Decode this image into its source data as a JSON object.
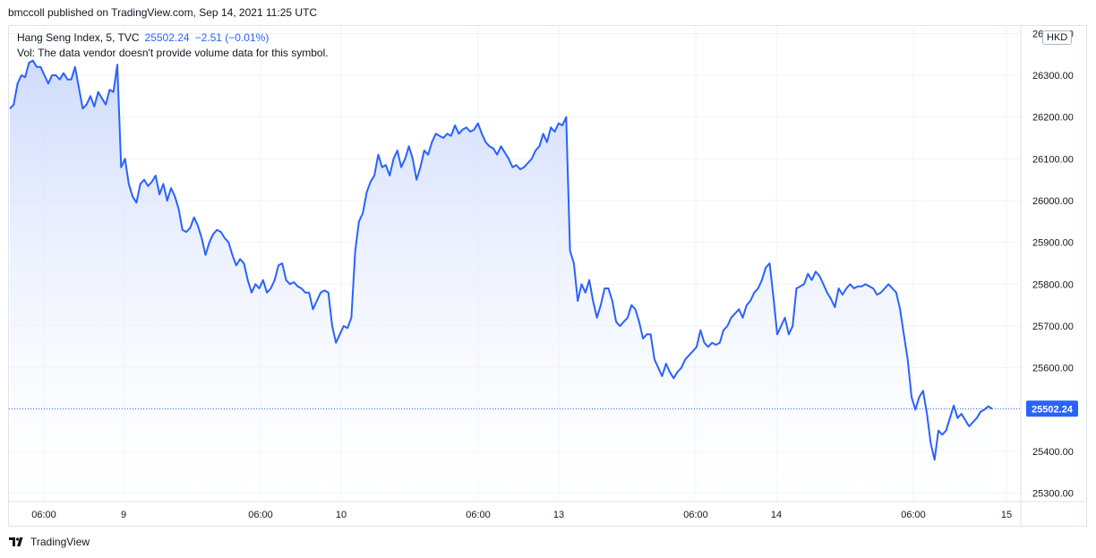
{
  "header": {
    "publish_line": "bmccoll published on TradingView.com, Sep 14, 2021 11:25 UTC"
  },
  "legend": {
    "symbol": "Hang Seng Index, 5, TVC",
    "last": "25502.24",
    "change": "−2.51 (−0.01%)",
    "volume_note": "Vol: The data vendor doesn't provide volume data for this symbol."
  },
  "currency": "HKD",
  "footer": {
    "brand": "TradingView"
  },
  "colors": {
    "line": "#2962ff",
    "fill_top": "#c9d7fb",
    "fill_bottom": "#ffffff",
    "grid": "#f0f3fa",
    "price_label_bg": "#2962ff",
    "axis_text": "#131722"
  },
  "chart_data": {
    "type": "area",
    "title": "",
    "xlabel": "",
    "ylabel": "",
    "x_tick_labels": [
      "06:00",
      "9",
      "06:00",
      "10",
      "06:00",
      "13",
      "06:00",
      "14",
      "06:00",
      "15"
    ],
    "y_tick_labels": [
      "25300.00",
      "25400.00",
      "25500.00",
      "25600.00",
      "25700.00",
      "25800.00",
      "25900.00",
      "26000.00",
      "26100.00",
      "26200.00",
      "26300.00",
      "26400.00"
    ],
    "ylim": [
      25280,
      26420
    ],
    "grid": true,
    "last_price_label": "25502.24",
    "series": [
      {
        "values": [
          26220,
          26230,
          26280,
          26300,
          26295,
          26330,
          26335,
          26320,
          26320,
          26300,
          26280,
          26300,
          26300,
          26290,
          26305,
          26290,
          26290,
          26320,
          26270,
          26220,
          26230,
          26250,
          26225,
          26260,
          26245,
          26230,
          26265,
          26260,
          26325,
          26080,
          26100,
          26040,
          26010,
          25995,
          26040,
          26050,
          26035,
          26045,
          26060,
          26015,
          26040,
          26000,
          26030,
          26010,
          25980,
          25930,
          25925,
          25935,
          25960,
          25940,
          25910,
          25870,
          25900,
          25920,
          25930,
          25925,
          25910,
          25900,
          25870,
          25845,
          25860,
          25850,
          25810,
          25780,
          25800,
          25790,
          25810,
          25780,
          25790,
          25810,
          25845,
          25850,
          25810,
          25800,
          25805,
          25795,
          25790,
          25780,
          25780,
          25740,
          25760,
          25780,
          25785,
          25780,
          25700,
          25660,
          25680,
          25700,
          25695,
          25720,
          25880,
          25950,
          25970,
          26020,
          26045,
          26060,
          26110,
          26080,
          26085,
          26060,
          26100,
          26120,
          26080,
          26100,
          26130,
          26100,
          26050,
          26080,
          26120,
          26110,
          26140,
          26160,
          26155,
          26150,
          26160,
          26155,
          26180,
          26160,
          26170,
          26175,
          26165,
          26170,
          26185,
          26160,
          26140,
          26130,
          26125,
          26110,
          26130,
          26115,
          26100,
          26080,
          26085,
          26075,
          26080,
          26090,
          26100,
          26120,
          26130,
          26160,
          26140,
          26175,
          26165,
          26185,
          26180,
          26200,
          25880,
          25850,
          25760,
          25800,
          25780,
          25810,
          25760,
          25720,
          25750,
          25790,
          25790,
          25760,
          25710,
          25700,
          25710,
          25720,
          25750,
          25740,
          25710,
          25670,
          25680,
          25680,
          25620,
          25600,
          25580,
          25610,
          25590,
          25575,
          25590,
          25600,
          25620,
          25630,
          25640,
          25650,
          25690,
          25660,
          25650,
          25660,
          25655,
          25660,
          25690,
          25700,
          25720,
          25730,
          25740,
          25720,
          25750,
          25760,
          25780,
          25790,
          25810,
          25840,
          25850,
          25770,
          25680,
          25700,
          25720,
          25680,
          25700,
          25790,
          25795,
          25800,
          25825,
          25810,
          25830,
          25820,
          25800,
          25780,
          25765,
          25745,
          25790,
          25775,
          25790,
          25800,
          25790,
          25795,
          25795,
          25800,
          25795,
          25790,
          25775,
          25780,
          25790,
          25800,
          25790,
          25780,
          25740,
          25680,
          25620,
          25530,
          25500,
          25530,
          25545,
          25490,
          25420,
          25380,
          25450,
          25440,
          25450,
          25480,
          25510,
          25480,
          25490,
          25475,
          25460,
          25470,
          25480,
          25495,
          25500,
          25508,
          25502
        ]
      }
    ]
  }
}
